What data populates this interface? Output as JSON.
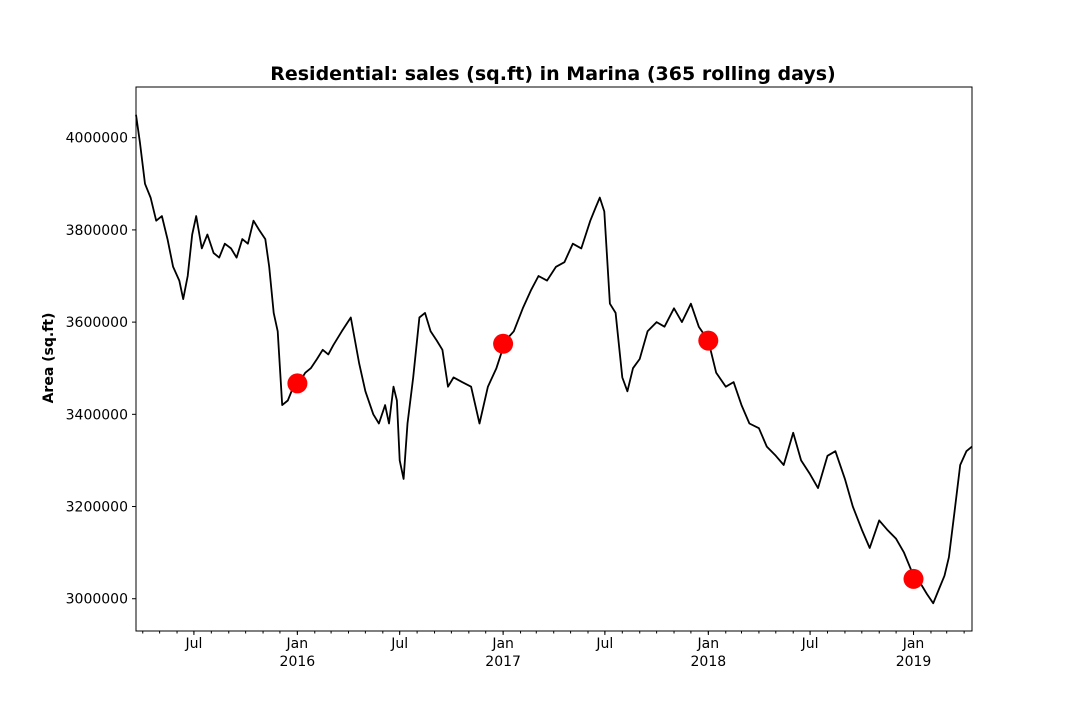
{
  "chart_data": {
    "type": "line",
    "title": "Residential: sales (sq.ft) in Marina (365 rolling days)",
    "xlabel": "",
    "ylabel": "Area (sq.ft)",
    "xlim": [
      "2015-03-20",
      "2019-04-15"
    ],
    "ylim": [
      2930000,
      4110000
    ],
    "grid": false,
    "y_ticks": [
      3000000,
      3200000,
      3400000,
      3600000,
      3800000,
      4000000
    ],
    "x_ticks": [
      {
        "date": "2015-07-01",
        "label": "Jul",
        "year": ""
      },
      {
        "date": "2016-01-01",
        "label": "Jan",
        "year": "2016"
      },
      {
        "date": "2016-07-01",
        "label": "Jul",
        "year": ""
      },
      {
        "date": "2017-01-01",
        "label": "Jan",
        "year": "2017"
      },
      {
        "date": "2017-07-01",
        "label": "Jul",
        "year": ""
      },
      {
        "date": "2018-01-01",
        "label": "Jan",
        "year": "2018"
      },
      {
        "date": "2018-07-01",
        "label": "Jul",
        "year": ""
      },
      {
        "date": "2019-01-01",
        "label": "Jan",
        "year": "2019"
      }
    ],
    "series": [
      {
        "color": "#000000",
        "x": [
          "2015-03-20",
          "2015-03-27",
          "2015-04-05",
          "2015-04-15",
          "2015-04-25",
          "2015-05-05",
          "2015-05-15",
          "2015-05-25",
          "2015-06-05",
          "2015-06-12",
          "2015-06-20",
          "2015-06-28",
          "2015-07-05",
          "2015-07-15",
          "2015-07-25",
          "2015-08-05",
          "2015-08-15",
          "2015-08-25",
          "2015-09-05",
          "2015-09-15",
          "2015-09-25",
          "2015-10-05",
          "2015-10-15",
          "2015-10-25",
          "2015-11-05",
          "2015-11-12",
          "2015-11-20",
          "2015-11-27",
          "2015-12-05",
          "2015-12-15",
          "2015-12-25",
          "2016-01-05",
          "2016-01-15",
          "2016-01-25",
          "2016-02-05",
          "2016-02-15",
          "2016-02-25",
          "2016-03-05",
          "2016-03-20",
          "2016-04-05",
          "2016-04-20",
          "2016-05-01",
          "2016-05-15",
          "2016-05-25",
          "2016-06-05",
          "2016-06-12",
          "2016-06-20",
          "2016-06-26",
          "2016-07-01",
          "2016-07-08",
          "2016-07-15",
          "2016-07-25",
          "2016-08-05",
          "2016-08-15",
          "2016-08-25",
          "2016-09-05",
          "2016-09-15",
          "2016-09-25",
          "2016-10-05",
          "2016-10-20",
          "2016-11-05",
          "2016-11-20",
          "2016-12-05",
          "2016-12-20",
          "2017-01-05",
          "2017-01-20",
          "2017-02-05",
          "2017-02-20",
          "2017-03-05",
          "2017-03-20",
          "2017-04-05",
          "2017-04-20",
          "2017-05-05",
          "2017-05-20",
          "2017-06-05",
          "2017-06-15",
          "2017-06-22",
          "2017-06-30",
          "2017-07-10",
          "2017-07-20",
          "2017-08-01",
          "2017-08-10",
          "2017-08-20",
          "2017-09-01",
          "2017-09-15",
          "2017-10-01",
          "2017-10-15",
          "2017-11-01",
          "2017-11-15",
          "2017-12-01",
          "2017-12-15",
          "2018-01-01",
          "2018-01-15",
          "2018-02-01",
          "2018-02-15",
          "2018-03-01",
          "2018-03-15",
          "2018-04-01",
          "2018-04-15",
          "2018-05-01",
          "2018-05-15",
          "2018-06-01",
          "2018-06-15",
          "2018-07-01",
          "2018-07-15",
          "2018-08-01",
          "2018-08-15",
          "2018-09-01",
          "2018-09-15",
          "2018-10-01",
          "2018-10-15",
          "2018-11-01",
          "2018-11-15",
          "2018-12-01",
          "2018-12-15",
          "2019-01-01",
          "2019-01-15",
          "2019-01-25",
          "2019-02-05",
          "2019-02-15",
          "2019-02-25",
          "2019-03-05",
          "2019-03-15",
          "2019-03-25",
          "2019-04-05",
          "2019-04-15"
        ],
        "y": [
          4050000,
          3990000,
          3900000,
          3870000,
          3820000,
          3830000,
          3780000,
          3720000,
          3690000,
          3650000,
          3700000,
          3790000,
          3830000,
          3760000,
          3790000,
          3750000,
          3740000,
          3770000,
          3760000,
          3740000,
          3780000,
          3770000,
          3820000,
          3800000,
          3780000,
          3720000,
          3620000,
          3580000,
          3420000,
          3430000,
          3460000,
          3470000,
          3490000,
          3500000,
          3520000,
          3540000,
          3530000,
          3550000,
          3580000,
          3610000,
          3510000,
          3450000,
          3400000,
          3380000,
          3420000,
          3380000,
          3460000,
          3430000,
          3300000,
          3260000,
          3380000,
          3480000,
          3610000,
          3620000,
          3580000,
          3560000,
          3540000,
          3460000,
          3480000,
          3470000,
          3460000,
          3380000,
          3460000,
          3500000,
          3560000,
          3580000,
          3630000,
          3670000,
          3700000,
          3690000,
          3720000,
          3730000,
          3770000,
          3760000,
          3820000,
          3850000,
          3870000,
          3840000,
          3640000,
          3620000,
          3480000,
          3450000,
          3500000,
          3520000,
          3580000,
          3600000,
          3590000,
          3630000,
          3600000,
          3640000,
          3590000,
          3560000,
          3490000,
          3460000,
          3470000,
          3420000,
          3380000,
          3370000,
          3330000,
          3310000,
          3290000,
          3360000,
          3300000,
          3270000,
          3240000,
          3310000,
          3320000,
          3260000,
          3200000,
          3150000,
          3110000,
          3170000,
          3150000,
          3130000,
          3100000,
          3050000,
          3030000,
          3010000,
          2990000,
          3020000,
          3050000,
          3090000,
          3190000,
          3290000,
          3320000,
          3330000
        ]
      }
    ],
    "markers": {
      "color": "#ff0000",
      "x": [
        "2016-01-01",
        "2017-01-01",
        "2018-01-01",
        "2019-01-01"
      ],
      "y": [
        3467000,
        3553000,
        3560000,
        3043000
      ]
    }
  }
}
